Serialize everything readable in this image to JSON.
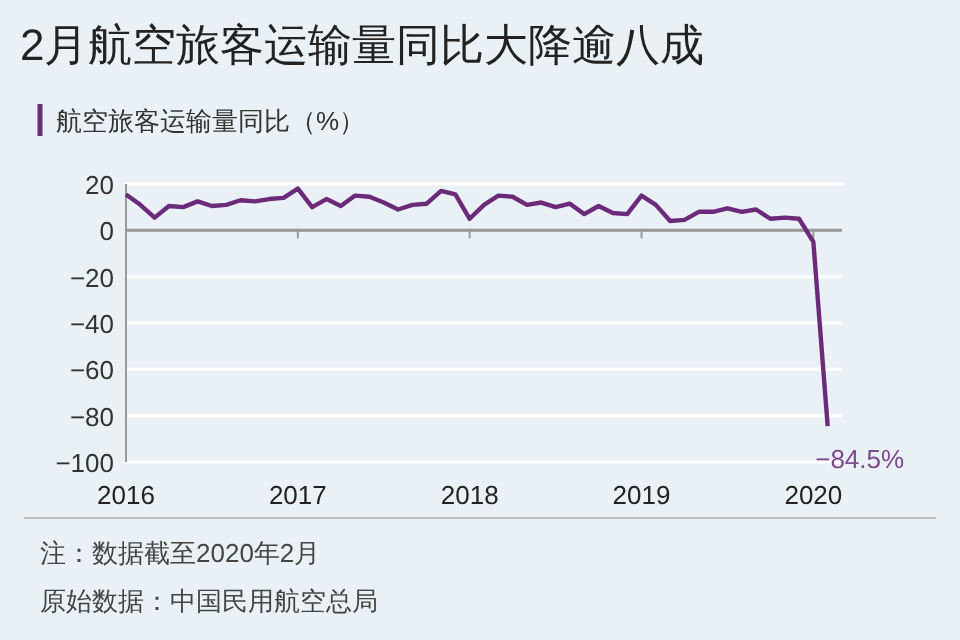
{
  "chart_data": {
    "type": "line",
    "title": "2月航空旅客运输量同比大降逾八成",
    "x": [
      "2016-01",
      "2016-02",
      "2016-03",
      "2016-04",
      "2016-05",
      "2016-06",
      "2016-07",
      "2016-08",
      "2016-09",
      "2016-10",
      "2016-11",
      "2016-12",
      "2017-01",
      "2017-02",
      "2017-03",
      "2017-04",
      "2017-05",
      "2017-06",
      "2017-07",
      "2017-08",
      "2017-09",
      "2017-10",
      "2017-11",
      "2017-12",
      "2018-01",
      "2018-02",
      "2018-03",
      "2018-04",
      "2018-05",
      "2018-06",
      "2018-07",
      "2018-08",
      "2018-09",
      "2018-10",
      "2018-11",
      "2018-12",
      "2019-01",
      "2019-02",
      "2019-03",
      "2019-04",
      "2019-05",
      "2019-06",
      "2019-07",
      "2019-08",
      "2019-09",
      "2019-10",
      "2019-11",
      "2019-12",
      "2020-01",
      "2020-02"
    ],
    "series": [
      {
        "name": "航空旅客运输量同比（%）",
        "color": "#6b2a7a",
        "values": [
          15.5,
          11,
          5.5,
          10.5,
          10,
          12.5,
          10.5,
          11,
          13,
          12.5,
          13.5,
          14,
          18,
          10,
          13.5,
          10.5,
          15,
          14.5,
          12,
          9,
          11,
          11.5,
          17,
          15.5,
          5,
          11,
          15,
          14.5,
          11,
          12,
          10,
          11.5,
          7,
          10.5,
          7.5,
          7,
          15,
          11,
          4,
          4.5,
          8,
          8,
          9.5,
          8,
          9,
          5,
          5.5,
          5,
          -5,
          -84.5
        ]
      }
    ],
    "xlim": [
      "2016-01",
      "2020-03"
    ],
    "xticks": [
      {
        "value": "2016-01",
        "label": "2016"
      },
      {
        "value": "2017-01",
        "label": "2017"
      },
      {
        "value": "2018-01",
        "label": "2018"
      },
      {
        "value": "2019-01",
        "label": "2019"
      },
      {
        "value": "2020-01",
        "label": "2020"
      }
    ],
    "ylim": [
      -100,
      20
    ],
    "yticks": [
      {
        "value": -100,
        "label": "−100"
      },
      {
        "value": -80,
        "label": "−80"
      },
      {
        "value": -60,
        "label": "−60"
      },
      {
        "value": -40,
        "label": "−40"
      },
      {
        "value": -20,
        "label": "−20"
      },
      0,
      20
    ],
    "grid": "y",
    "legend": "top left",
    "marker": "none",
    "line_style": "solid",
    "annotations": [
      {
        "text": "−84.5%",
        "x": "2020-02",
        "y": -84.5
      },
      "注：数据截至2020年2月",
      "原始数据：中国民用航空总局"
    ]
  }
}
